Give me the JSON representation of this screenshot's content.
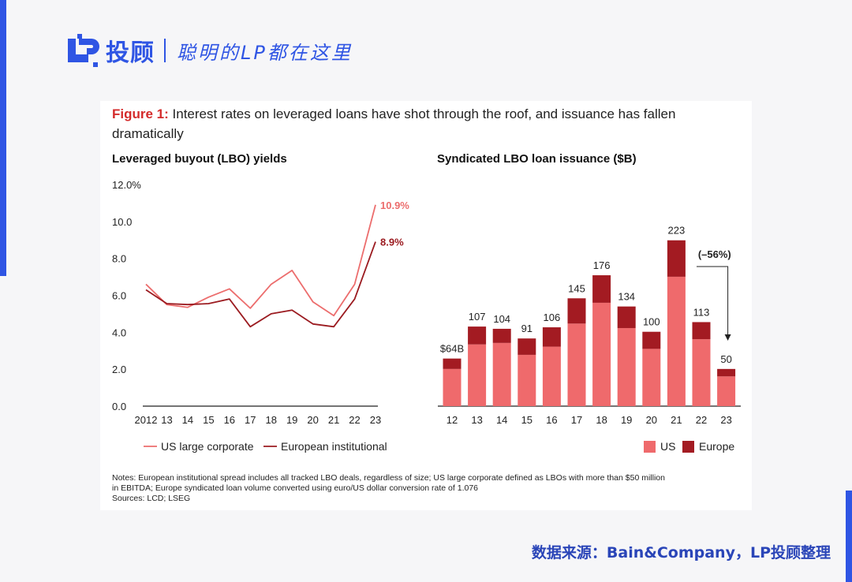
{
  "brand": {
    "name": "投顾",
    "slogan": "聪明的LP都在这里"
  },
  "colors": {
    "accent_blue": "#2f55e4",
    "figure_red": "#d42b2b",
    "us_line": "#ec6d6d",
    "eu_line": "#9b1b20",
    "us_bar": "#ef6a6c",
    "eu_bar": "#a31b22"
  },
  "figure": {
    "label": "Figure 1:",
    "title": "Interest rates on leveraged loans have shot through the roof, and issuance has fallen dramatically"
  },
  "chart_data": [
    {
      "type": "line",
      "title": "Leveraged buyout (LBO) yields",
      "x": [
        "2012",
        "13",
        "14",
        "15",
        "16",
        "17",
        "18",
        "19",
        "20",
        "21",
        "22",
        "23"
      ],
      "series": [
        {
          "name": "US large corporate",
          "values": [
            6.6,
            5.5,
            5.35,
            5.9,
            6.35,
            5.3,
            6.6,
            7.35,
            5.65,
            4.9,
            6.6,
            10.9
          ]
        },
        {
          "name": "European institutional",
          "values": [
            6.3,
            5.55,
            5.5,
            5.55,
            5.8,
            4.3,
            5.0,
            5.2,
            4.45,
            4.3,
            5.8,
            8.9
          ]
        }
      ],
      "end_labels": [
        "10.9%",
        "8.9%"
      ],
      "y_ticks": [
        "0.0",
        "2.0",
        "4.0",
        "6.0",
        "8.0",
        "10.0",
        "12.0%"
      ],
      "ylim": [
        0,
        12
      ]
    },
    {
      "type": "bar",
      "title": "Syndicated LBO loan issuance ($B)",
      "categories": [
        "12",
        "13",
        "14",
        "15",
        "16",
        "17",
        "18",
        "19",
        "20",
        "21",
        "22",
        "23"
      ],
      "series": [
        {
          "name": "US",
          "values": [
            50,
            83,
            85,
            69,
            80,
            111,
            139,
            105,
            77,
            174,
            90,
            40
          ]
        },
        {
          "name": "Europe",
          "values": [
            14,
            24,
            19,
            22,
            26,
            34,
            37,
            29,
            23,
            49,
            23,
            10
          ]
        }
      ],
      "totals": [
        64,
        107,
        104,
        91,
        106,
        145,
        176,
        134,
        100,
        223,
        113,
        50
      ],
      "total_labels": [
        "$64B",
        "107",
        "104",
        "91",
        "106",
        "145",
        "176",
        "134",
        "100",
        "223",
        "113",
        "50"
      ],
      "annotation": "(–56%)",
      "ylim": [
        0,
        240
      ]
    }
  ],
  "notes": {
    "line1": "Notes: European institutional spread includes all tracked LBO deals, regardless of size; US large corporate defined as LBOs with more than $50 million",
    "line2": "in EBITDA; Europe syndicated loan volume converted using euro/US dollar conversion rate of 1.076",
    "sources": "Sources: LCD; LSEG"
  },
  "footer_source": "数据来源：Bain&Company，LP投顾整理"
}
